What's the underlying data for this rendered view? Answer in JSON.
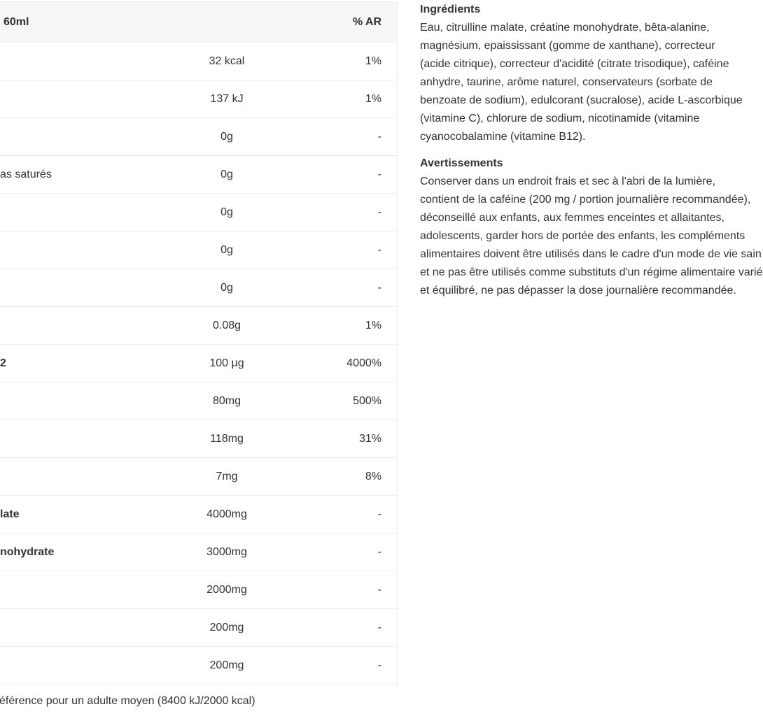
{
  "table": {
    "header": {
      "label": "60ml",
      "value": "",
      "ar": "% AR"
    },
    "rows": [
      {
        "label": "",
        "value": "32 kcal",
        "ar": "1%",
        "bold": false
      },
      {
        "label": "",
        "value": "137 kJ",
        "ar": "1%",
        "bold": false
      },
      {
        "label": "",
        "value": "0g",
        "ar": "-",
        "bold": false
      },
      {
        "label": "as saturés",
        "value": "0g",
        "ar": "-",
        "bold": false
      },
      {
        "label": "",
        "value": "0g",
        "ar": "-",
        "bold": false
      },
      {
        "label": "",
        "value": "0g",
        "ar": "-",
        "bold": false
      },
      {
        "label": "",
        "value": "0g",
        "ar": "-",
        "bold": false
      },
      {
        "label": "",
        "value": "0.08g",
        "ar": "1%",
        "bold": false
      },
      {
        "label": "2",
        "value": "100 µg",
        "ar": "4000%",
        "bold": true
      },
      {
        "label": "",
        "value": "80mg",
        "ar": "500%",
        "bold": false
      },
      {
        "label": "",
        "value": "118mg",
        "ar": "31%",
        "bold": false
      },
      {
        "label": "",
        "value": "7mg",
        "ar": "8%",
        "bold": false
      },
      {
        "label": "late",
        "value": "4000mg",
        "ar": "-",
        "bold": true
      },
      {
        "label": "nohydrate",
        "value": "3000mg",
        "ar": "-",
        "bold": true
      },
      {
        "label": "",
        "value": "2000mg",
        "ar": "-",
        "bold": false
      },
      {
        "label": "",
        "value": "200mg",
        "ar": "-",
        "bold": false
      },
      {
        "label": "",
        "value": "200mg",
        "ar": "-",
        "bold": false
      }
    ],
    "footnote": "éférence pour un adulte moyen (8400 kJ/2000 kcal)"
  },
  "ingredients": {
    "title": "Ingrédients",
    "lines": [
      "Eau, citrulline malate, créatine monohydrate, bêta-alanine,",
      "magnésium, epaississant (gomme de xanthane), correcteur",
      "(acide citrique), correcteur d'acidité (citrate trisodique), caféine",
      "anhydre, taurine, arôme naturel, conservateurs (sorbate de",
      "benzoate de sodium), edulcorant (sucralose), acide L-ascorbique",
      "(vitamine C), chlorure de sodium, nicotinamide (vitamine",
      "cyanocobalamine (vitamine B12)."
    ]
  },
  "warnings": {
    "title": "Avertissements",
    "lines": [
      "Conserver dans un endroit frais et sec à l'abri de la lumière,",
      "contient de la caféine (200 mg / portion journalière recommandée),",
      "déconseillé aux enfants, aux femmes enceintes et allaitantes,",
      "adolescents, garder hors de portée des enfants, les compléments",
      "alimentaires doivent être utilisés dans le cadre d'un mode de vie sain",
      "et ne pas être utilisés comme substituts d'un régime alimentaire varié",
      "et équilibré, ne pas dépasser la dose journalière recommandée."
    ]
  }
}
